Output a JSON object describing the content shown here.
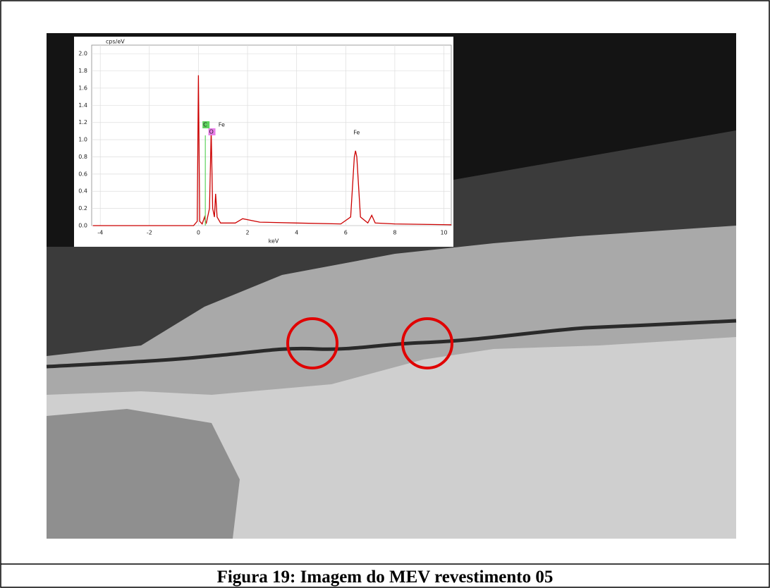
{
  "figure": {
    "caption": "Figura 19: Imagem do MEV revestimento 05"
  },
  "chart_data": {
    "type": "line",
    "ylabel": "cps/eV",
    "xlabel": "keV",
    "x": [
      -4.3,
      -0.2,
      -0.05,
      0,
      0.05,
      0.15,
      0.25,
      0.28,
      0.32,
      0.45,
      0.52,
      0.58,
      0.65,
      0.7,
      0.76,
      0.9,
      1.5,
      1.8,
      2.5,
      4,
      5.8,
      6.2,
      6.35,
      6.4,
      6.45,
      6.6,
      6.9,
      7.06,
      7.2,
      8,
      10.3
    ],
    "series": [
      {
        "color": "#cc0000",
        "values": [
          0,
          0,
          0.05,
          1.75,
          0.05,
          0.02,
          0.1,
          0.05,
          0.03,
          0.2,
          1.1,
          0.2,
          0.1,
          0.37,
          0.1,
          0.03,
          0.03,
          0.08,
          0.04,
          0.03,
          0.02,
          0.1,
          0.8,
          0.87,
          0.8,
          0.1,
          0.03,
          0.12,
          0.03,
          0.02,
          0.01
        ]
      }
    ],
    "elements": [
      {
        "label": "C",
        "energy": 0.28,
        "height": 1.05,
        "color": "#5ed35e"
      },
      {
        "label": "Fe",
        "energy": 0.7
      },
      {
        "label": "O",
        "energy": 0.52,
        "color": "#e87de8"
      },
      {
        "label": "Fe",
        "energy": 6.4
      }
    ],
    "xlim": [
      -4.35,
      10.3
    ],
    "xticks": [
      -4,
      -2,
      0,
      2,
      4,
      6,
      8,
      10
    ],
    "ylim": [
      0,
      2.1
    ],
    "yticks": [
      {
        "value": 0,
        "label": "0.0"
      },
      {
        "value": 0.2,
        "label": "0.2"
      },
      {
        "value": 0.4,
        "label": "0.4"
      },
      {
        "value": 0.6,
        "label": "0.6"
      },
      {
        "value": 0.8,
        "label": "0.8"
      },
      {
        "value": 1,
        "label": "1.0"
      },
      {
        "value": 1.2,
        "label": "1.2"
      },
      {
        "value": 1.4,
        "label": "1.4"
      },
      {
        "value": 1.6,
        "label": "1.6"
      },
      {
        "value": 1.8,
        "label": "1.8"
      },
      {
        "value": 2,
        "label": "2.0"
      }
    ],
    "grid": true
  }
}
